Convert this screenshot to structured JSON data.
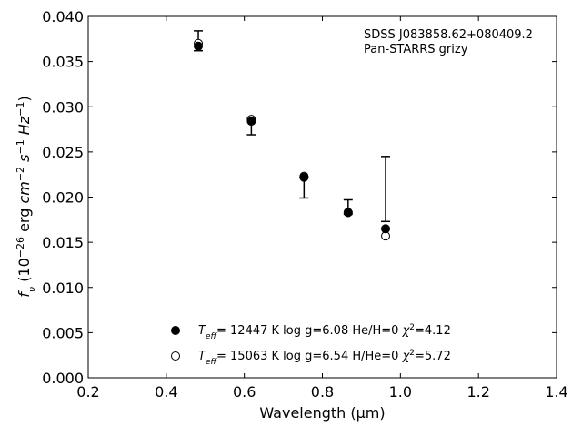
{
  "chart_data": {
    "type": "scatter",
    "xlabel": "Wavelength (μm)",
    "ylabel": "f_ν (10^−26 erg cm^−2 s^−1 Hz^−1)",
    "xlim": [
      0.2,
      1.4
    ],
    "ylim": [
      0.0,
      0.04
    ],
    "xticks": [
      "0.2",
      "0.4",
      "0.6",
      "0.8",
      "1.0",
      "1.2",
      "1.4"
    ],
    "yticks": [
      "0.000",
      "0.005",
      "0.010",
      "0.015",
      "0.020",
      "0.025",
      "0.030",
      "0.035",
      "0.040"
    ],
    "grid": false,
    "annotation": [
      "SDSS J083858.62+080409.2",
      "Pan-STARRS grizy"
    ],
    "observed": {
      "x": [
        0.482,
        0.618,
        0.753,
        0.866,
        0.962
      ],
      "y_low": [
        0.0362,
        0.0269,
        0.0199,
        0.0181,
        0.0173
      ],
      "y_high": [
        0.0384,
        0.0287,
        0.0222,
        0.0197,
        0.0245
      ]
    },
    "series": [
      {
        "name": "T_eff= 12447 K  log g=6.08  He/H=0  χ²=4.12",
        "marker": "filled",
        "x": [
          0.482,
          0.618,
          0.753,
          0.866,
          0.962
        ],
        "y": [
          0.0367,
          0.0284,
          0.0222,
          0.0183,
          0.0165
        ]
      },
      {
        "name": "T_eff= 15063 K  log g=6.54  H/He=0  χ²=5.72",
        "marker": "open",
        "x": [
          0.482,
          0.618,
          0.753,
          0.866,
          0.962
        ],
        "y": [
          0.037,
          0.0286,
          0.0223,
          0.0183,
          0.0157
        ]
      }
    ]
  }
}
